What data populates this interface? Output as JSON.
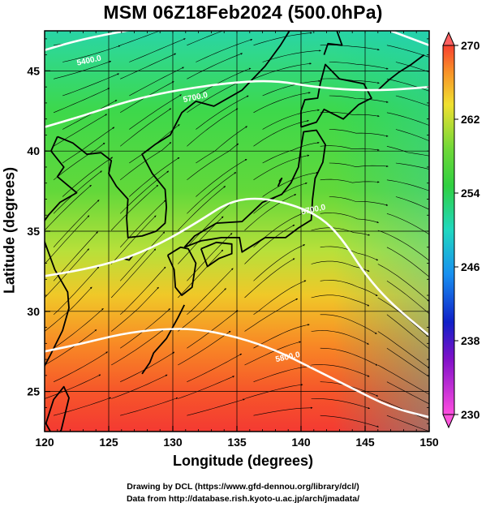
{
  "title": "MSM 06Z18Feb2024 (500.0hPa)",
  "chart_data": {
    "type": "heatmap",
    "title": "MSM 06Z18Feb2024 (500.0hPa)",
    "xlabel": "Longitude (degrees)",
    "ylabel": "Latitude  (degrees)",
    "xlim": [
      120,
      150
    ],
    "ylim": [
      22.5,
      47.5
    ],
    "x_ticks": [
      "120",
      "125",
      "130",
      "135",
      "140",
      "145",
      "150"
    ],
    "y_ticks": [
      "25",
      "30",
      "35",
      "40",
      "45"
    ],
    "colorbar": {
      "min": 230,
      "max": 270,
      "tick_labels": [
        "270",
        "262",
        "254",
        "246",
        "238",
        "230"
      ]
    },
    "contours": [
      {
        "label": "5400.0",
        "points": [
          [
            120,
            46.3
          ],
          [
            123,
            47.0
          ],
          [
            127,
            47.6
          ]
        ]
      },
      {
        "label": "5700.0",
        "points": [
          [
            120,
            41.5
          ],
          [
            123,
            42.2
          ],
          [
            126,
            43.0
          ],
          [
            129,
            43.6
          ],
          [
            132,
            44.0
          ],
          [
            135,
            44.3
          ],
          [
            138,
            44.4
          ],
          [
            141,
            44.0
          ],
          [
            144,
            43.8
          ],
          [
            147,
            43.8
          ],
          [
            150,
            44.0
          ]
        ]
      },
      {
        "label": "",
        "points": [
          [
            147,
            47.5
          ],
          [
            150,
            46.6
          ]
        ]
      },
      {
        "label": "5700.0",
        "points": [
          [
            120,
            32.2
          ],
          [
            123,
            32.6
          ],
          [
            126,
            33.2
          ],
          [
            129,
            34.2
          ],
          [
            132,
            35.6
          ],
          [
            134.5,
            36.9
          ],
          [
            137,
            37.1
          ],
          [
            140,
            36.5
          ],
          [
            142,
            35.6
          ],
          [
            143.5,
            34.2
          ],
          [
            145,
            32.3
          ],
          [
            147,
            30.5
          ],
          [
            150,
            28.5
          ]
        ]
      },
      {
        "label": "5800.0",
        "points": [
          [
            120,
            27.5
          ],
          [
            123,
            28.0
          ],
          [
            126,
            28.6
          ],
          [
            129,
            28.9
          ],
          [
            132,
            28.9
          ],
          [
            135,
            28.4
          ],
          [
            138,
            27.6
          ],
          [
            141,
            26.4
          ],
          [
            144,
            25.2
          ],
          [
            147,
            24.0
          ],
          [
            150,
            23.4
          ]
        ]
      }
    ],
    "contour_label_positions": [
      {
        "label": "5400.0",
        "lon": 123.5,
        "lat": 45.5
      },
      {
        "label": "5700.0",
        "lon": 131.8,
        "lat": 43.2
      },
      {
        "label": "5700.0",
        "lon": 141.0,
        "lat": 36.2
      },
      {
        "label": "5800.0",
        "lon": 139.0,
        "lat": 27.0
      }
    ]
  },
  "credits": {
    "line1": "Drawing by DCL (https://www.gfd-dennou.org/library/dcl/)",
    "line2": "Data from http://database.rish.kyoto-u.ac.jp/arch/jmadata/"
  },
  "colors": {
    "colorbar_top": "#ff6060",
    "colorbar_bottom": "#ff55dd"
  }
}
